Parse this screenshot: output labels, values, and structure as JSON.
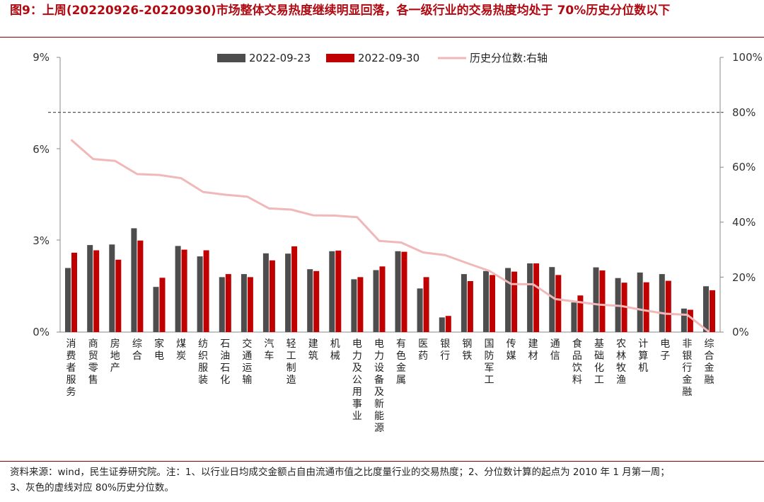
{
  "title": "图9：上周(20220926-20220930)市场整体交易热度继续明显回落，各一级行业的交易热度均处于 70%历史分位数以下",
  "footnote": {
    "line1": "资料来源：wind，民生证券研究院。注：1、以行业日均成交金额占自由流通市值之比度量行业的交易热度；2、分位数计算的起点为 2010 年 1 月第一周；",
    "line2": "3、灰色的虚线对应 80%历史分位数。"
  },
  "colors": {
    "series1": "#4d4d4d",
    "series2": "#c00000",
    "line": "#f0b8b8",
    "reference": "#555555",
    "title": "#b00a12"
  },
  "chart_data": {
    "type": "bar",
    "categories": [
      "消费者服务",
      "商贸零售",
      "房地产",
      "综合",
      "家电",
      "煤炭",
      "纺织服装",
      "石油石化",
      "交通运输",
      "汽车",
      "轻工制造",
      "建筑",
      "机械",
      "电力及公用事业",
      "电力设备及新能源",
      "有色金属",
      "医药",
      "银行",
      "钢铁",
      "国防军工",
      "传媒",
      "建材",
      "通信",
      "食品饮料",
      "基础化工",
      "农林牧渔",
      "计算机",
      "电子",
      "非银行金融",
      "综合金融"
    ],
    "series": [
      {
        "name": "2022-09-23",
        "type": "bar",
        "axis": "left",
        "values": [
          2.1,
          2.85,
          2.87,
          3.4,
          1.48,
          2.82,
          2.48,
          1.8,
          1.9,
          2.58,
          2.57,
          2.06,
          2.65,
          1.73,
          2.03,
          2.65,
          1.43,
          0.48,
          1.9,
          2.0,
          2.1,
          2.25,
          2.13,
          0.97,
          2.12,
          1.77,
          1.95,
          1.9,
          0.77,
          1.5
        ]
      },
      {
        "name": "2022-09-30",
        "type": "bar",
        "axis": "left",
        "values": [
          2.6,
          2.68,
          2.37,
          3.0,
          1.78,
          2.7,
          2.68,
          1.9,
          1.8,
          2.35,
          2.81,
          2.0,
          2.67,
          1.8,
          2.15,
          2.63,
          1.8,
          0.53,
          1.67,
          1.87,
          1.98,
          2.25,
          1.87,
          1.2,
          2.02,
          1.62,
          1.63,
          1.68,
          0.73,
          1.37
        ]
      },
      {
        "name": "历史分位数:右轴",
        "type": "line",
        "axis": "right",
        "values": [
          70,
          63,
          62.3,
          57.5,
          57.2,
          56,
          51,
          50,
          49.3,
          45,
          44.6,
          42.5,
          42.4,
          41.8,
          33.2,
          32.6,
          29,
          28,
          25.1,
          22.3,
          17.5,
          17.4,
          12,
          11,
          10,
          9.5,
          8,
          6.7,
          6.3,
          0
        ]
      }
    ],
    "y_left": {
      "ticks": [
        "0%",
        "3%",
        "6%",
        "9%"
      ],
      "range": [
        0,
        9
      ]
    },
    "y_right": {
      "ticks": [
        "0%",
        "20%",
        "40%",
        "60%",
        "80%",
        "100%"
      ],
      "range": [
        0,
        100
      ]
    },
    "reference_line": {
      "axis": "right",
      "value": 80,
      "style": "dashed"
    },
    "legend": {
      "position": "top-center",
      "entries": [
        "2022-09-23",
        "2022-09-30",
        "历史分位数:右轴"
      ]
    },
    "grid": false
  }
}
